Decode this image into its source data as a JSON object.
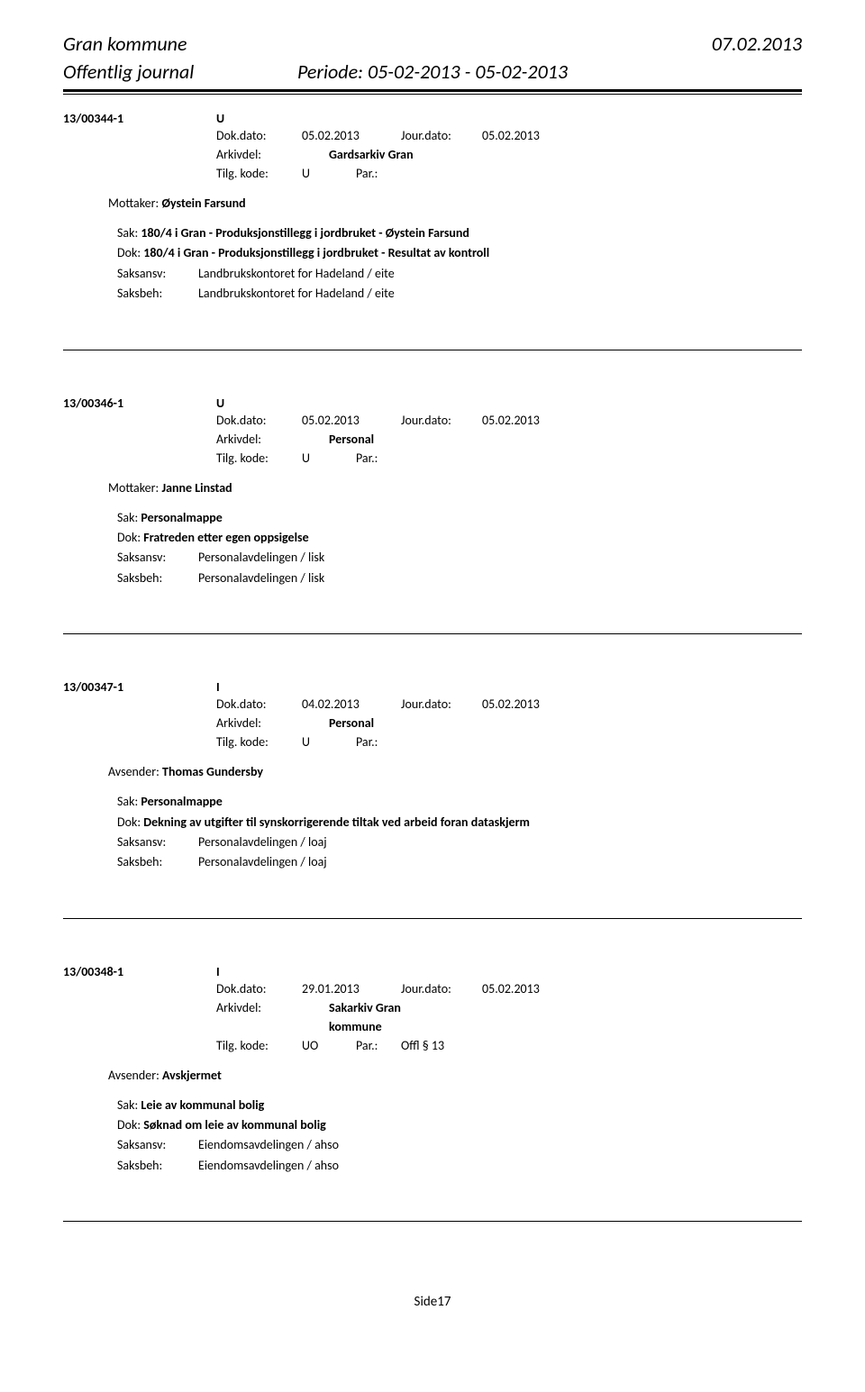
{
  "header": {
    "title": "Gran kommune",
    "date": "07.02.2013",
    "subtitle": "Offentlig journal",
    "period": "Periode: 05-02-2013 - 05-02-2013"
  },
  "entries": [
    {
      "id": "13/00344-1",
      "type": "U",
      "dok_dato_label": "Dok.dato:",
      "dok_dato": "05.02.2013",
      "jour_dato_label": "Jour.dato:",
      "jour_dato": "05.02.2013",
      "arkivdel_label": "Arkivdel:",
      "arkivdel": "Gardsarkiv Gran",
      "tilg_kode_label": "Tilg. kode:",
      "tilg_kode": "U",
      "par_label": "Par.:",
      "par_value": "",
      "party_label": "Mottaker:",
      "party": "Øystein Farsund",
      "sak_label": "Sak:",
      "sak": "180/4 i Gran - Produksjonstillegg i jordbruket - Øystein Farsund",
      "dok_label": "Dok:",
      "dok": "180/4 i Gran - Produksjonstillegg i jordbruket - Resultat av kontroll",
      "saksansv_label": "Saksansv:",
      "saksansv": "Landbrukskontoret for Hadeland / eite",
      "saksbeh_label": "Saksbeh:",
      "saksbeh": "Landbrukskontoret for Hadeland / eite"
    },
    {
      "id": "13/00346-1",
      "type": "U",
      "dok_dato_label": "Dok.dato:",
      "dok_dato": "05.02.2013",
      "jour_dato_label": "Jour.dato:",
      "jour_dato": "05.02.2013",
      "arkivdel_label": "Arkivdel:",
      "arkivdel": "Personal",
      "tilg_kode_label": "Tilg. kode:",
      "tilg_kode": "U",
      "par_label": "Par.:",
      "par_value": "",
      "party_label": "Mottaker:",
      "party": "Janne Linstad",
      "sak_label": "Sak:",
      "sak": "Personalmappe",
      "dok_label": "Dok:",
      "dok": "Fratreden etter egen oppsigelse",
      "saksansv_label": "Saksansv:",
      "saksansv": "Personalavdelingen / lisk",
      "saksbeh_label": "Saksbeh:",
      "saksbeh": "Personalavdelingen / lisk"
    },
    {
      "id": "13/00347-1",
      "type": "I",
      "dok_dato_label": "Dok.dato:",
      "dok_dato": "04.02.2013",
      "jour_dato_label": "Jour.dato:",
      "jour_dato": "05.02.2013",
      "arkivdel_label": "Arkivdel:",
      "arkivdel": "Personal",
      "tilg_kode_label": "Tilg. kode:",
      "tilg_kode": "U",
      "par_label": "Par.:",
      "par_value": "",
      "party_label": "Avsender:",
      "party": "Thomas Gundersby",
      "sak_label": "Sak:",
      "sak": "Personalmappe",
      "dok_label": "Dok:",
      "dok": "Dekning av utgifter til synskorrigerende tiltak ved arbeid foran dataskjerm",
      "saksansv_label": "Saksansv:",
      "saksansv": "Personalavdelingen / loaj",
      "saksbeh_label": "Saksbeh:",
      "saksbeh": "Personalavdelingen / loaj"
    },
    {
      "id": "13/00348-1",
      "type": "I",
      "dok_dato_label": "Dok.dato:",
      "dok_dato": "29.01.2013",
      "jour_dato_label": "Jour.dato:",
      "jour_dato": "05.02.2013",
      "arkivdel_label": "Arkivdel:",
      "arkivdel": "Sakarkiv Gran kommune",
      "tilg_kode_label": "Tilg. kode:",
      "tilg_kode": "UO",
      "par_label": "Par.:",
      "par_value": "Offl § 13",
      "party_label": "Avsender:",
      "party": "Avskjermet",
      "sak_label": "Sak:",
      "sak": "Leie av kommunal bolig",
      "dok_label": "Dok:",
      "dok": "Søknad om leie av kommunal bolig",
      "saksansv_label": "Saksansv:",
      "saksansv": "Eiendomsavdelingen / ahso",
      "saksbeh_label": "Saksbeh:",
      "saksbeh": "Eiendomsavdelingen / ahso"
    }
  ],
  "footer": {
    "page": "Side17"
  }
}
